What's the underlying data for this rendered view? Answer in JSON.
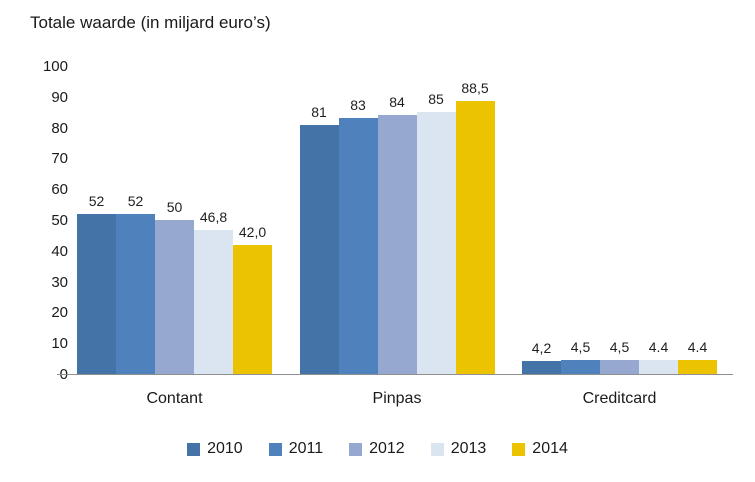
{
  "chart_data": {
    "type": "bar",
    "title": "Totale waarde (in miljard euro’s)",
    "categories": [
      "Contant",
      "Pinpas",
      "Creditcard"
    ],
    "series": [
      {
        "name": "2010",
        "color": "#4473A8",
        "values": [
          52,
          81,
          4.2
        ],
        "labels": [
          "52",
          "81",
          "4,2"
        ]
      },
      {
        "name": "2011",
        "color": "#4F81BD",
        "values": [
          52,
          83,
          4.5
        ],
        "labels": [
          "52",
          "83",
          "4,5"
        ]
      },
      {
        "name": "2012",
        "color": "#96A8CF",
        "values": [
          50,
          84,
          4.5
        ],
        "labels": [
          "50",
          "84",
          "4,5"
        ]
      },
      {
        "name": "2013",
        "color": "#DBE5F1",
        "values": [
          46.8,
          85,
          4.4
        ],
        "labels": [
          "46,8",
          "85",
          "4.4"
        ]
      },
      {
        "name": "2014",
        "color": "#ECC300",
        "values": [
          42,
          88.5,
          4.4
        ],
        "labels": [
          "42,0",
          "88,5",
          "4.4"
        ]
      }
    ],
    "ylim": [
      0,
      100
    ],
    "ytick_step": 10,
    "ytick_labels": [
      "0",
      "10",
      "20",
      "30",
      "40",
      "50",
      "60",
      "70",
      "80",
      "90",
      "100"
    ],
    "grid": false,
    "legend_position": "bottom",
    "axis_line_color": "#8f8f8f"
  }
}
